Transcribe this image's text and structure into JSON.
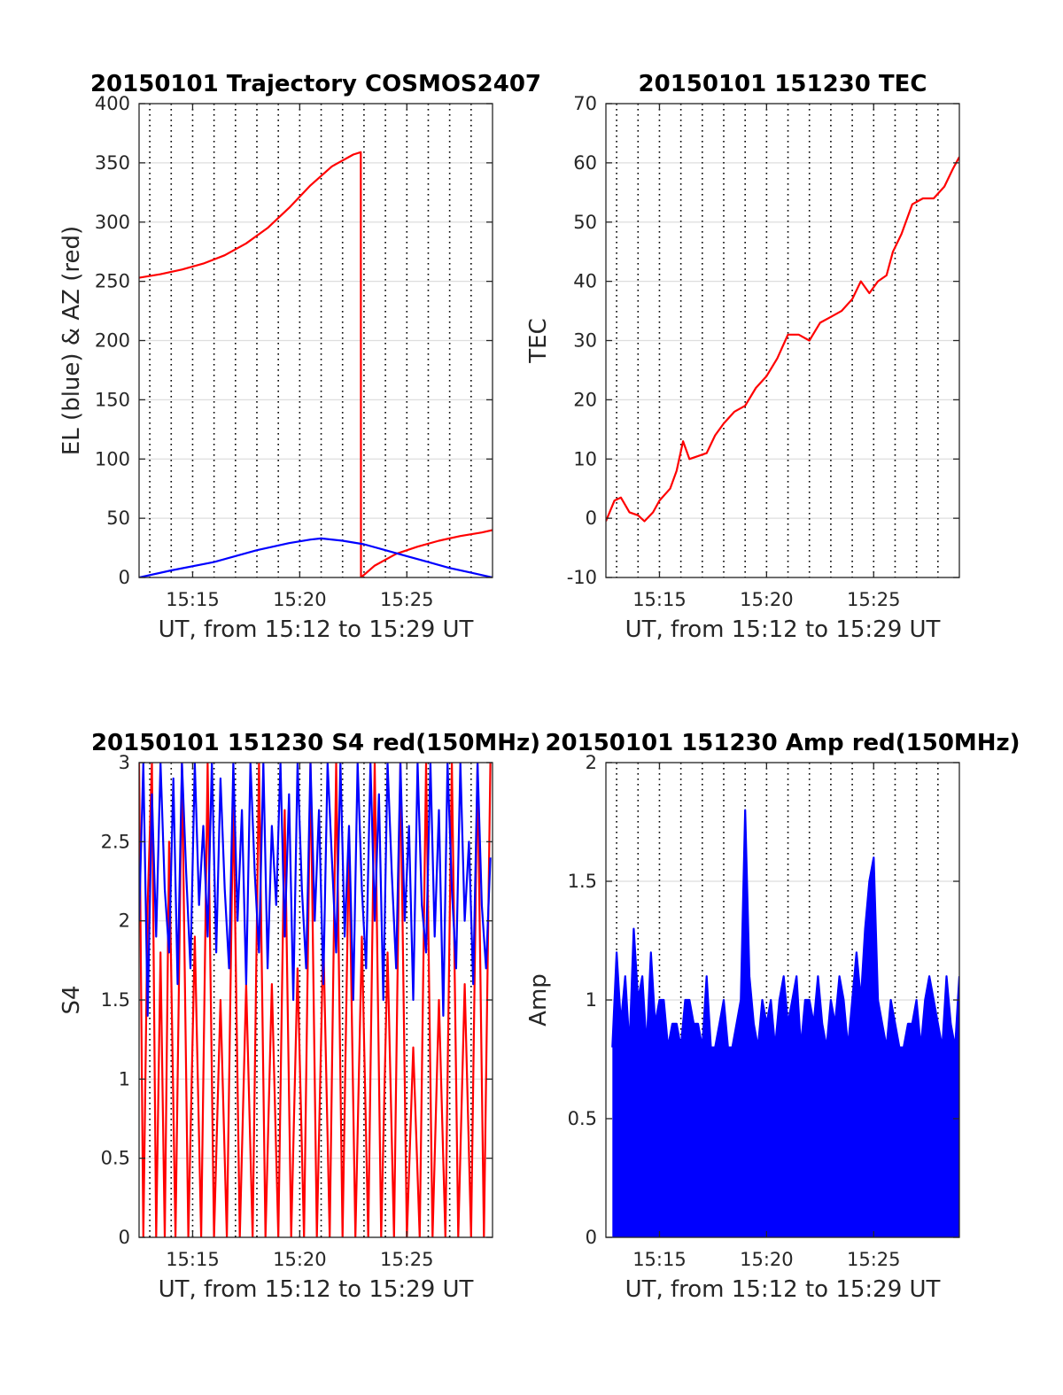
{
  "chart_data": [
    {
      "type": "line",
      "title": "20150101 Trajectory COSMOS2407",
      "xlabel": "UT, from 15:12 to 15:29 UT",
      "ylabel": "EL (blue) & AZ (red)",
      "xlim": [
        12.5,
        29
      ],
      "ylim": [
        0,
        400
      ],
      "x_tick_labels": [
        "15:15",
        "15:20",
        "15:25"
      ],
      "x_ticks": [
        15,
        20,
        25
      ],
      "y_ticks": [
        0,
        50,
        100,
        150,
        200,
        250,
        300,
        350,
        400
      ],
      "grid": true,
      "colors": {
        "el": "#0000ff",
        "az": "#ff0000"
      },
      "series": [
        {
          "color": "#ff0000",
          "x": [
            12.5,
            13.5,
            14.5,
            15.5,
            16.5,
            17.5,
            18.5,
            19.5,
            20.5,
            21.5,
            22.5,
            22.85,
            22.86,
            23.5,
            24.5,
            25.5,
            26.5,
            27.5,
            28.5,
            29
          ],
          "y": [
            253,
            256,
            260,
            265,
            272,
            282,
            295,
            312,
            331,
            347,
            357,
            359,
            0,
            10,
            20,
            26,
            31,
            35,
            38,
            40
          ]
        },
        {
          "color": "#0000ff",
          "x": [
            12.5,
            14,
            16,
            18,
            19.5,
            20.5,
            21,
            22,
            23,
            24,
            25,
            26,
            27,
            28,
            29
          ],
          "y": [
            0,
            6,
            13,
            23,
            29,
            32,
            33,
            31,
            28,
            23,
            18,
            13,
            8,
            4,
            0
          ]
        }
      ]
    },
    {
      "type": "line",
      "title": "20150101 151230 TEC",
      "xlabel": "UT, from 15:12 to 15:29 UT",
      "ylabel": "TEC",
      "xlim": [
        12.5,
        29
      ],
      "ylim": [
        -10,
        70
      ],
      "x_tick_labels": [
        "15:15",
        "15:20",
        "15:25"
      ],
      "x_ticks": [
        15,
        20,
        25
      ],
      "y_ticks": [
        -10,
        0,
        10,
        20,
        30,
        40,
        50,
        60,
        70
      ],
      "grid": true,
      "series": [
        {
          "color": "#ff0000",
          "x": [
            12.5,
            12.9,
            13.2,
            13.6,
            14.0,
            14.3,
            14.7,
            15.0,
            15.5,
            15.8,
            16.1,
            16.4,
            16.8,
            17.2,
            17.6,
            18.0,
            18.5,
            19.0,
            19.5,
            20.0,
            20.5,
            21.0,
            21.5,
            22.0,
            22.5,
            23.0,
            23.5,
            24.0,
            24.4,
            24.8,
            25.2,
            25.6,
            25.9,
            26.3,
            26.8,
            27.3,
            27.8,
            28.3,
            28.7,
            29.0
          ],
          "y": [
            -0.5,
            3,
            3.5,
            1,
            0.5,
            -0.5,
            1,
            3,
            5,
            8,
            13,
            10,
            10.5,
            11,
            14,
            16,
            18,
            19,
            22,
            24,
            27,
            31,
            31,
            30,
            33,
            34,
            35,
            37,
            40,
            38,
            40,
            41,
            45,
            48,
            53,
            54,
            54,
            56,
            59,
            61
          ]
        }
      ]
    },
    {
      "type": "line",
      "title": "20150101 151230 S4 red(150MHz)",
      "xlabel": "UT, from 15:12 to 15:29 UT",
      "ylabel": "S4",
      "xlim": [
        12.5,
        29
      ],
      "ylim": [
        0,
        3
      ],
      "x_tick_labels": [
        "15:15",
        "15:20",
        "15:25"
      ],
      "x_ticks": [
        15,
        20,
        25
      ],
      "y_ticks": [
        0,
        0.5,
        1,
        1.5,
        2,
        2.5,
        3
      ],
      "grid": true,
      "series": [
        {
          "color": "#ff0000",
          "x": [
            12.5,
            12.7,
            12.9,
            13.1,
            13.3,
            13.5,
            13.7,
            13.9,
            14.2,
            14.5,
            14.8,
            15.1,
            15.4,
            15.7,
            16.0,
            16.3,
            16.6,
            16.9,
            17.2,
            17.5,
            17.8,
            18.1,
            18.4,
            18.7,
            19.0,
            19.3,
            19.6,
            19.9,
            20.2,
            20.5,
            20.8,
            21.1,
            21.4,
            21.7,
            22.0,
            22.3,
            22.6,
            22.9,
            23.2,
            23.5,
            23.8,
            24.1,
            24.4,
            24.7,
            25.0,
            25.3,
            25.6,
            25.9,
            26.2,
            26.5,
            26.8,
            27.1,
            27.4,
            27.7,
            28.0,
            28.3,
            28.6,
            28.9
          ],
          "y": [
            3,
            0,
            2.1,
            3,
            0,
            1.8,
            0,
            2.5,
            0,
            3,
            0,
            1.9,
            0,
            3,
            0,
            1.5,
            0,
            2.8,
            0,
            1.6,
            0,
            3,
            0,
            1.6,
            0,
            2.7,
            0,
            1.7,
            0,
            3,
            0,
            1.9,
            0,
            3,
            0,
            2.5,
            0,
            1.9,
            0,
            3,
            0,
            1.8,
            0,
            3,
            0,
            1.2,
            0,
            3,
            0,
            1.5,
            0,
            3,
            0,
            1.6,
            0,
            3,
            0,
            3
          ]
        },
        {
          "color": "#0000ff",
          "x": [
            12.5,
            12.7,
            12.9,
            13.1,
            13.3,
            13.5,
            13.7,
            13.9,
            14.1,
            14.3,
            14.5,
            14.7,
            14.9,
            15.1,
            15.3,
            15.5,
            15.7,
            15.9,
            16.1,
            16.3,
            16.5,
            16.7,
            16.9,
            17.1,
            17.3,
            17.5,
            17.7,
            17.9,
            18.1,
            18.3,
            18.5,
            18.7,
            18.9,
            19.1,
            19.3,
            19.5,
            19.7,
            19.9,
            20.1,
            20.3,
            20.5,
            20.7,
            20.9,
            21.1,
            21.3,
            21.5,
            21.7,
            21.9,
            22.1,
            22.3,
            22.5,
            22.7,
            22.9,
            23.1,
            23.3,
            23.5,
            23.7,
            23.9,
            24.1,
            24.3,
            24.5,
            24.7,
            24.9,
            25.1,
            25.3,
            25.5,
            25.7,
            25.9,
            26.1,
            26.3,
            26.5,
            26.7,
            26.9,
            27.1,
            27.3,
            27.5,
            27.7,
            27.9,
            28.1,
            28.3,
            28.5,
            28.7,
            28.9
          ],
          "y": [
            2.0,
            3.0,
            1.4,
            2.8,
            1.9,
            3.0,
            2.2,
            1.8,
            2.9,
            1.6,
            3.0,
            2.3,
            1.7,
            3.0,
            2.1,
            2.6,
            1.9,
            3.0,
            1.8,
            2.9,
            2.2,
            1.7,
            3.0,
            2.0,
            2.7,
            1.6,
            3.0,
            2.3,
            1.8,
            3.0,
            1.7,
            2.6,
            2.1,
            3.0,
            1.9,
            2.8,
            1.5,
            3.0,
            2.2,
            1.7,
            3.0,
            2.0,
            2.7,
            1.6,
            3.0,
            2.4,
            1.8,
            3.0,
            1.9,
            2.6,
            1.5,
            3.0,
            2.2,
            1.7,
            3.0,
            2.0,
            2.8,
            1.5,
            3.0,
            2.3,
            1.7,
            3.0,
            2.0,
            2.6,
            1.5,
            3.0,
            2.1,
            1.8,
            3.0,
            1.9,
            2.7,
            1.4,
            3.0,
            2.2,
            1.7,
            3.0,
            2.0,
            2.5,
            1.6,
            3.0,
            2.1,
            1.7,
            2.4
          ]
        }
      ]
    },
    {
      "type": "line",
      "title": "20150101 151230 Amp red(150MHz)",
      "xlabel": "UT, from 15:12 to 15:29 UT",
      "ylabel": "Amp",
      "xlim": [
        12.5,
        29
      ],
      "ylim": [
        0,
        2
      ],
      "x_tick_labels": [
        "15:15",
        "15:20",
        "15:25"
      ],
      "x_ticks": [
        15,
        20,
        25
      ],
      "y_ticks": [
        0,
        0.5,
        1,
        1.5,
        2
      ],
      "grid": true,
      "series": [
        {
          "color": "#0000ff",
          "fill_to_zero": true,
          "x": [
            12.8,
            13.0,
            13.2,
            13.4,
            13.6,
            13.8,
            14.0,
            14.2,
            14.4,
            14.6,
            14.8,
            15.0,
            15.2,
            15.4,
            15.6,
            15.8,
            16.0,
            16.2,
            16.4,
            16.6,
            16.8,
            17.0,
            17.2,
            17.4,
            17.6,
            17.8,
            18.0,
            18.2,
            18.4,
            18.6,
            18.8,
            19.0,
            19.2,
            19.4,
            19.6,
            19.8,
            20.0,
            20.2,
            20.4,
            20.6,
            20.8,
            21.0,
            21.2,
            21.4,
            21.6,
            21.8,
            22.0,
            22.2,
            22.4,
            22.6,
            22.8,
            23.0,
            23.2,
            23.4,
            23.6,
            23.8,
            24.0,
            24.2,
            24.4,
            24.6,
            24.8,
            25.0,
            25.2,
            25.4,
            25.6,
            25.8,
            26.0,
            26.2,
            26.4,
            26.6,
            26.8,
            27.0,
            27.2,
            27.4,
            27.6,
            27.8,
            28.0,
            28.2,
            28.4,
            28.6,
            28.8,
            29.0
          ],
          "y": [
            0.8,
            1.2,
            0.9,
            1.1,
            0.8,
            1.3,
            1.0,
            1.1,
            0.8,
            1.2,
            0.9,
            1.0,
            1.0,
            0.8,
            0.9,
            0.9,
            0.8,
            1.0,
            1.0,
            0.9,
            0.9,
            0.8,
            1.1,
            0.8,
            0.8,
            0.9,
            1.0,
            0.8,
            0.8,
            0.9,
            1.0,
            1.8,
            1.1,
            0.9,
            0.8,
            1.0,
            0.9,
            1.0,
            0.8,
            1.0,
            1.1,
            0.9,
            1.0,
            1.1,
            0.8,
            1.0,
            1.0,
            0.9,
            1.1,
            0.9,
            0.8,
            1.0,
            0.9,
            1.1,
            1.0,
            0.8,
            1.0,
            1.2,
            1.0,
            1.3,
            1.5,
            1.6,
            1.0,
            0.9,
            0.8,
            1.0,
            0.9,
            0.8,
            0.8,
            0.9,
            0.9,
            1.0,
            0.8,
            1.0,
            1.1,
            1.0,
            0.9,
            0.8,
            1.1,
            0.9,
            0.8,
            1.1
          ]
        }
      ]
    }
  ]
}
